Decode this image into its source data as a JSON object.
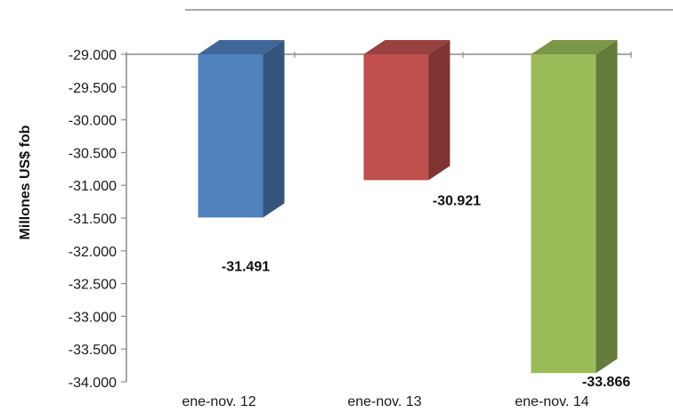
{
  "chart_data": {
    "type": "bar",
    "style": "3d-column",
    "categories": [
      "ene-nov. 12",
      "ene-nov. 13",
      "ene-nov. 14"
    ],
    "values": [
      -31491,
      -30921,
      -33866
    ],
    "data_labels": [
      "-31.491",
      "-30.921",
      "-33.866"
    ],
    "colors": [
      "#4F81BD",
      "#C0504D",
      "#9BBB59"
    ],
    "side_colors": [
      "#34557E",
      "#7F3432",
      "#667B3B"
    ],
    "top_colors": [
      "#3F6797",
      "#994040",
      "#7C9647"
    ],
    "title": "",
    "xlabel": "",
    "ylabel": "Millones US$ fob",
    "ylim": [
      -34000,
      -29000
    ],
    "yticks": [
      -29000,
      -29500,
      -30000,
      -30500,
      -31000,
      -31500,
      -32000,
      -32500,
      -33000,
      -33500,
      -34000
    ],
    "ytick_labels": [
      "-29.000",
      "-29.500",
      "-30.000",
      "-30.500",
      "-31.000",
      "-31.500",
      "-32.000",
      "-32.500",
      "-33.000",
      "-33.500",
      "-34.000"
    ],
    "grid": false,
    "legend": "none"
  }
}
